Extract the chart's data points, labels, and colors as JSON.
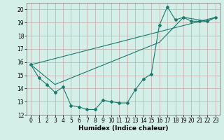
{
  "xlabel": "Humidex (Indice chaleur)",
  "bg_color": "#d4eee8",
  "grid_color": "#c8a8a8",
  "line_color": "#1a7a6e",
  "xlim": [
    -0.5,
    23.5
  ],
  "ylim": [
    12,
    20.5
  ],
  "yticks": [
    12,
    13,
    14,
    15,
    16,
    17,
    18,
    19,
    20
  ],
  "xticks": [
    0,
    1,
    2,
    3,
    4,
    5,
    6,
    7,
    8,
    9,
    10,
    11,
    12,
    13,
    14,
    15,
    16,
    17,
    18,
    19,
    20,
    21,
    22,
    23
  ],
  "line1_x": [
    0,
    1,
    2,
    3,
    4,
    5,
    6,
    7,
    8,
    9,
    10,
    11,
    12,
    13,
    14,
    15,
    16,
    17,
    18,
    19,
    20,
    21,
    22,
    23
  ],
  "line1_y": [
    15.8,
    14.8,
    14.3,
    13.7,
    14.1,
    12.7,
    12.6,
    12.4,
    12.4,
    13.1,
    13.0,
    12.9,
    12.9,
    13.9,
    14.7,
    15.1,
    18.8,
    20.2,
    19.2,
    19.4,
    19.1,
    19.1,
    19.1,
    19.4
  ],
  "line2_x": [
    0,
    3,
    16,
    19,
    22,
    23
  ],
  "line2_y": [
    15.8,
    14.3,
    17.5,
    19.4,
    19.1,
    19.4
  ],
  "line3_x": [
    0,
    23
  ],
  "line3_y": [
    15.8,
    19.4
  ],
  "xlabel_fontsize": 6.5,
  "tick_fontsize": 5.5
}
